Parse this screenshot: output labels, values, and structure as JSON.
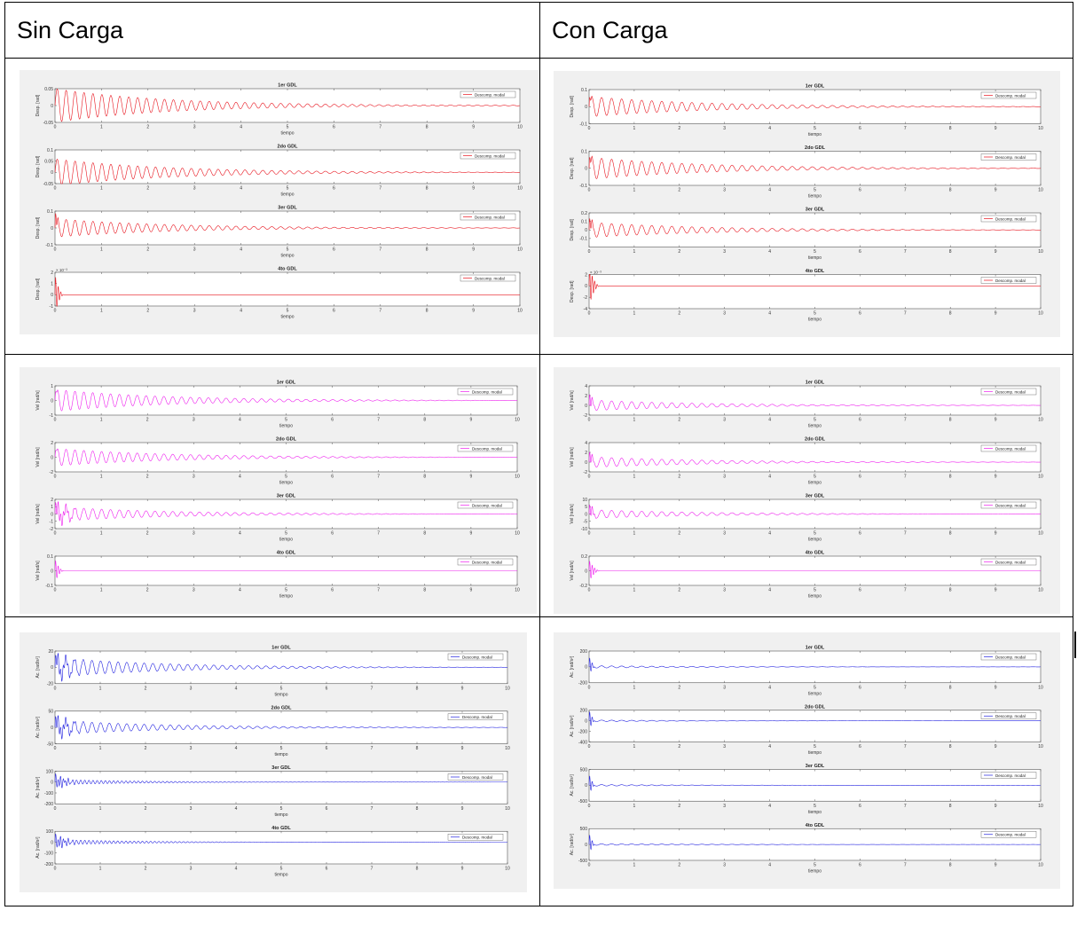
{
  "headers": {
    "left": "Sin Carga",
    "right": "Con Carga"
  },
  "common": {
    "xlabel": "tiempo",
    "legend": "Descomp. modal",
    "xticks": [
      "0",
      "1",
      "2",
      "3",
      "4",
      "5",
      "6",
      "7",
      "8",
      "9",
      "10"
    ],
    "colors": {
      "desp": "#e8141e",
      "vel": "#ee1fee",
      "ac": "#2323e0"
    }
  },
  "chart_data": [
    {
      "type": "line",
      "group": "Sin Carga - Desplazamiento",
      "color": "#e8141e",
      "xlim": [
        0,
        10
      ],
      "subplots": [
        {
          "title": "1er GDL",
          "ylabel": "Desp. [rad]",
          "ylim": [
            -0.05,
            0.05
          ],
          "yticks": [
            "0.05",
            "0",
            "-0.05"
          ],
          "exp": "",
          "amp": 0.05,
          "freq": 5.2,
          "decay": 0.42,
          "spike": 0,
          "spikeDur": 0
        },
        {
          "title": "2do GDL",
          "ylabel": "Desp. [rad]",
          "ylim": [
            -0.05,
            0.1
          ],
          "yticks": [
            "0.1",
            "0.05",
            "0",
            "-0.05"
          ],
          "exp": "",
          "amp": 0.06,
          "freq": 5.2,
          "decay": 0.42,
          "spike": 0,
          "spikeDur": 0
        },
        {
          "title": "3er GDL",
          "ylabel": "Desp. [rad]",
          "ylim": [
            -0.1,
            0.1
          ],
          "yticks": [
            "0.1",
            "0",
            "-0.1"
          ],
          "exp": "",
          "amp": 0.055,
          "freq": 5.2,
          "decay": 0.42,
          "spike": 0.08,
          "spikeDur": 0.12
        },
        {
          "title": "4to GDL",
          "ylabel": "Desp. [rad]",
          "ylim": [
            -1,
            2
          ],
          "yticks": [
            "2",
            "1",
            "0",
            "-1"
          ],
          "exp": "× 10⁻³",
          "amp": 0,
          "freq": 0,
          "decay": 0,
          "spike": 1.8,
          "spikeDur": 0.2
        }
      ]
    },
    {
      "type": "line",
      "group": "Con Carga - Desplazamiento",
      "color": "#e8141e",
      "xlim": [
        0,
        10
      ],
      "subplots": [
        {
          "title": "1er GDL",
          "ylabel": "Desp. [rad]",
          "ylim": [
            -0.1,
            0.1
          ],
          "yticks": [
            "0.1",
            "0",
            "-0.1"
          ],
          "exp": "",
          "amp": 0.06,
          "freq": 4.5,
          "decay": 0.4,
          "spike": 0.04,
          "spikeDur": 0.1
        },
        {
          "title": "2do GDL",
          "ylabel": "Desp. [rad]",
          "ylim": [
            -0.1,
            0.1
          ],
          "yticks": [
            "0.1",
            "0",
            "-0.1"
          ],
          "exp": "",
          "amp": 0.065,
          "freq": 4.5,
          "decay": 0.4,
          "spike": 0.05,
          "spikeDur": 0.12
        },
        {
          "title": "3er GDL",
          "ylabel": "Desp. [rad]",
          "ylim": [
            -0.2,
            0.2
          ],
          "yticks": [
            "0.2",
            "0.1",
            "0",
            "-0.1"
          ],
          "exp": "",
          "amp": 0.09,
          "freq": 4.5,
          "decay": 0.4,
          "spike": 0.12,
          "spikeDur": 0.15
        },
        {
          "title": "4to GDL",
          "ylabel": "Desp. [rad]",
          "ylim": [
            -4,
            2
          ],
          "yticks": [
            "2",
            "0",
            "-2",
            "-4"
          ],
          "exp": "× 10⁻³",
          "amp": 0,
          "freq": 0,
          "decay": 0,
          "spike": 3.5,
          "spikeDur": 0.25
        }
      ]
    },
    {
      "type": "line",
      "group": "Sin Carga - Velocidad",
      "color": "#ee1fee",
      "xlim": [
        0,
        10
      ],
      "subplots": [
        {
          "title": "1er GDL",
          "ylabel": "Vel [rad/s]",
          "ylim": [
            -1,
            1
          ],
          "yticks": [
            "1",
            "0",
            "-1"
          ],
          "exp": "",
          "amp": 0.75,
          "freq": 5.2,
          "decay": 0.42,
          "spike": 0.3,
          "spikeDur": 0.12
        },
        {
          "title": "2do GDL",
          "ylabel": "Vel [rad/s]",
          "ylim": [
            -2,
            2
          ],
          "yticks": [
            "2",
            "0",
            "-2"
          ],
          "exp": "",
          "amp": 1.2,
          "freq": 5.2,
          "decay": 0.42,
          "spike": 0.4,
          "spikeDur": 0.12
        },
        {
          "title": "3er GDL",
          "ylabel": "Vel [rad/s]",
          "ylim": [
            -2,
            2
          ],
          "yticks": [
            "2",
            "1",
            "0",
            "-1",
            "-2"
          ],
          "exp": "",
          "amp": 1.0,
          "freq": 5.2,
          "decay": 0.42,
          "spike": 1.2,
          "spikeDur": 0.7
        },
        {
          "title": "4to GDL",
          "ylabel": "Vel [rad/s]",
          "ylim": [
            -0.1,
            0.1
          ],
          "yticks": [
            "0.1",
            "0",
            "-0.1"
          ],
          "exp": "",
          "amp": 0,
          "freq": 0,
          "decay": 0,
          "spike": 0.08,
          "spikeDur": 0.2
        }
      ]
    },
    {
      "type": "line",
      "group": "Con Carga - Velocidad",
      "color": "#ee1fee",
      "xlim": [
        0,
        10
      ],
      "subplots": [
        {
          "title": "1er GDL",
          "ylabel": "Vel [rad/s]",
          "ylim": [
            -2,
            4
          ],
          "yticks": [
            "4",
            "2",
            "0",
            "-2"
          ],
          "exp": "",
          "amp": 1.1,
          "freq": 4.5,
          "decay": 0.4,
          "spike": 2.2,
          "spikeDur": 0.15
        },
        {
          "title": "2do GDL",
          "ylabel": "Vel [rad/s]",
          "ylim": [
            -2,
            4
          ],
          "yticks": [
            "4",
            "2",
            "0",
            "-2"
          ],
          "exp": "",
          "amp": 1.1,
          "freq": 4.5,
          "decay": 0.4,
          "spike": 2.0,
          "spikeDur": 0.15
        },
        {
          "title": "3er GDL",
          "ylabel": "Vel [rad/s]",
          "ylim": [
            -10,
            10
          ],
          "yticks": [
            "10",
            "5",
            "0",
            "-5",
            "-10"
          ],
          "exp": "",
          "amp": 3,
          "freq": 4.5,
          "decay": 0.4,
          "spike": 6,
          "spikeDur": 0.2
        },
        {
          "title": "4to GDL",
          "ylabel": "Vel [rad/s]",
          "ylim": [
            -0.2,
            0.2
          ],
          "yticks": [
            "0.2",
            "0",
            "-0.2"
          ],
          "exp": "",
          "amp": 0,
          "freq": 0,
          "decay": 0,
          "spike": 0.15,
          "spikeDur": 0.25
        }
      ]
    },
    {
      "type": "line",
      "group": "Sin Carga - Aceleracion",
      "color": "#2323e0",
      "xlim": [
        0,
        10
      ],
      "subplots": [
        {
          "title": "1er GDL",
          "ylabel": "Ac. [rad/s²]",
          "ylim": [
            -20,
            20
          ],
          "yticks": [
            "20",
            "0",
            "-20"
          ],
          "exp": "",
          "amp": 12,
          "freq": 5.2,
          "decay": 0.42,
          "spike": 10,
          "spikeDur": 0.8
        },
        {
          "title": "2do GDL",
          "ylabel": "Ac. [rad/s²]",
          "ylim": [
            -50,
            50
          ],
          "yticks": [
            "50",
            "0",
            "-50"
          ],
          "exp": "",
          "amp": 22,
          "freq": 5.2,
          "decay": 0.42,
          "spike": 25,
          "spikeDur": 0.8
        },
        {
          "title": "3er GDL",
          "ylabel": "Ac. [rad/s²]",
          "ylim": [
            -200,
            100
          ],
          "yticks": [
            "100",
            "0",
            "-100",
            "-200"
          ],
          "exp": "",
          "amp": 25,
          "freq": 11,
          "decay": 0.55,
          "spike": 60,
          "spikeDur": 0.6
        },
        {
          "title": "4to GDL",
          "ylabel": "Ac. [rad/s²]",
          "ylim": [
            -200,
            100
          ],
          "yticks": [
            "100",
            "0",
            "-100",
            "-200"
          ],
          "exp": "",
          "amp": 25,
          "freq": 11,
          "decay": 0.55,
          "spike": 60,
          "spikeDur": 0.6
        }
      ]
    },
    {
      "type": "line",
      "group": "Con Carga - Aceleracion",
      "color": "#2323e0",
      "xlim": [
        0,
        10
      ],
      "subplots": [
        {
          "title": "1er GDL",
          "ylabel": "Ac. [rad/s²]",
          "ylim": [
            -200,
            200
          ],
          "yticks": [
            "200",
            "0",
            "-200"
          ],
          "exp": "",
          "amp": 15,
          "freq": 4.5,
          "decay": 0.4,
          "spike": 130,
          "spikeDur": 0.15
        },
        {
          "title": "2do GDL",
          "ylabel": "Ac. [rad/s²]",
          "ylim": [
            -400,
            200
          ],
          "yticks": [
            "200",
            "0",
            "-200",
            "-400"
          ],
          "exp": "",
          "amp": 15,
          "freq": 4.5,
          "decay": 0.4,
          "spike": 200,
          "spikeDur": 0.15
        },
        {
          "title": "3er GDL",
          "ylabel": "Ac. [rad/s²]",
          "ylim": [
            -500,
            500
          ],
          "yticks": [
            "500",
            "0",
            "-500"
          ],
          "exp": "",
          "amp": 25,
          "freq": 4.5,
          "decay": 0.4,
          "spike": 350,
          "spikeDur": 0.15
        },
        {
          "title": "4to GDL",
          "ylabel": "Ac. [rad/s²]",
          "ylim": [
            -500,
            500
          ],
          "yticks": [
            "500",
            "0",
            "-500"
          ],
          "exp": "",
          "amp": 25,
          "freq": 4.5,
          "decay": 0.4,
          "spike": 350,
          "spikeDur": 0.15
        }
      ]
    }
  ]
}
